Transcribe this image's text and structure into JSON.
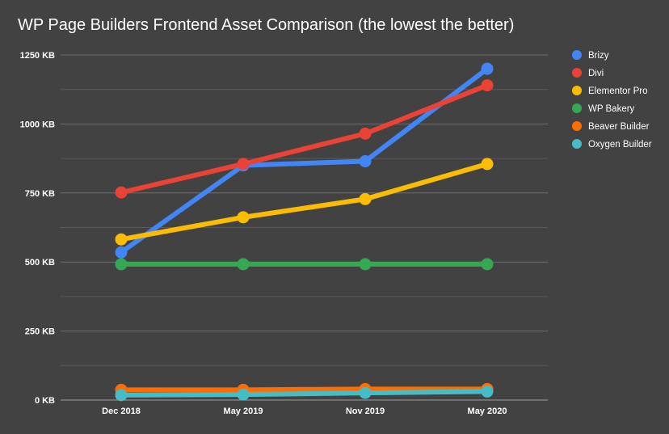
{
  "chart_data": {
    "type": "line",
    "title": "WP Page Builders Frontend Asset Comparison (the lowest the better)",
    "categories": [
      "Dec 2018",
      "May 2019",
      "Nov 2019",
      "May 2020"
    ],
    "yticks": [
      0,
      250,
      500,
      750,
      1000,
      1250
    ],
    "ytick_labels": [
      "0 KB",
      "250 KB",
      "500 KB",
      "750 KB",
      "1000 KB",
      "1250 KB"
    ],
    "ylim": [
      0,
      1250
    ],
    "grid": true,
    "legend_position": "right",
    "series": [
      {
        "name": "Brizy",
        "color": "#4285f4",
        "values": [
          535,
          850,
          865,
          1200
        ]
      },
      {
        "name": "Divi",
        "color": "#ea4335",
        "values": [
          752,
          855,
          965,
          1140
        ]
      },
      {
        "name": "Elementor Pro",
        "color": "#fbbc04",
        "values": [
          582,
          662,
          728,
          855
        ]
      },
      {
        "name": "WP Bakery",
        "color": "#34a853",
        "values": [
          492,
          492,
          492,
          492
        ]
      },
      {
        "name": "Beaver Builder",
        "color": "#ff6d01",
        "values": [
          37,
          37,
          40,
          40
        ]
      },
      {
        "name": "Oxygen Builder",
        "color": "#46bdc6",
        "values": [
          18,
          20,
          26,
          31
        ]
      }
    ]
  }
}
